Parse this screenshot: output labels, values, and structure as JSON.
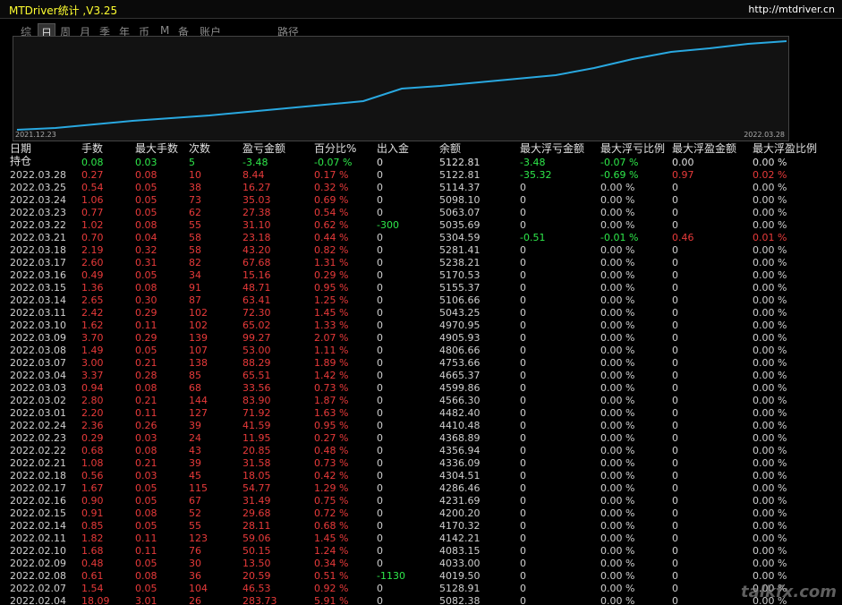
{
  "header": {
    "title": "MTDriver统计 ,V3.25",
    "url": "http://mtdriver.cn"
  },
  "tabs": [
    "综",
    "日",
    "周",
    "月",
    "季",
    "年",
    "币",
    "M",
    "备",
    "账户",
    "路径"
  ],
  "selected_tab": 1,
  "equity_curve": {
    "start_label": "2021.12.23",
    "end_label": "2022.03.28",
    "color": "#29a8e0",
    "ylim": [
      0,
      100
    ],
    "values": [
      0,
      2,
      6,
      10,
      13,
      16,
      20,
      24,
      28,
      32,
      46,
      49,
      53,
      57,
      61,
      69,
      79,
      87,
      91,
      96,
      99
    ]
  },
  "table": {
    "columns": [
      "日期",
      "手数",
      "最大手数",
      "次数",
      "盈亏金额",
      "百分比%",
      "出入金",
      "余额",
      "最大浮亏金额",
      "最大浮亏比例",
      "最大浮盈金额",
      "最大浮盈比例"
    ],
    "holding": [
      "持仓",
      "0.08",
      "0.03",
      "5",
      "-3.48",
      "-0.07 %",
      "0",
      "5122.81",
      "-3.48",
      "-0.07 %",
      "0.00",
      "0.00 %"
    ],
    "rows": [
      [
        "2022.03.28",
        "0.27",
        "0.08",
        "10",
        "8.44",
        "0.17 %",
        "0",
        "5122.81",
        "-35.32",
        "-0.69 %",
        "0.97",
        "0.02 %"
      ],
      [
        "2022.03.25",
        "0.54",
        "0.05",
        "38",
        "16.27",
        "0.32 %",
        "0",
        "5114.37",
        "0",
        "0.00 %",
        "0",
        "0.00 %"
      ],
      [
        "2022.03.24",
        "1.06",
        "0.05",
        "73",
        "35.03",
        "0.69 %",
        "0",
        "5098.10",
        "0",
        "0.00 %",
        "0",
        "0.00 %"
      ],
      [
        "2022.03.23",
        "0.77",
        "0.05",
        "62",
        "27.38",
        "0.54 %",
        "0",
        "5063.07",
        "0",
        "0.00 %",
        "0",
        "0.00 %"
      ],
      [
        "2022.03.22",
        "1.02",
        "0.08",
        "55",
        "31.10",
        "0.62 %",
        "-300",
        "5035.69",
        "0",
        "0.00 %",
        "0",
        "0.00 %"
      ],
      [
        "2022.03.21",
        "0.70",
        "0.04",
        "58",
        "23.18",
        "0.44 %",
        "0",
        "5304.59",
        "-0.51",
        "-0.01 %",
        "0.46",
        "0.01 %"
      ],
      [
        "2022.03.18",
        "2.19",
        "0.32",
        "58",
        "43.20",
        "0.82 %",
        "0",
        "5281.41",
        "0",
        "0.00 %",
        "0",
        "0.00 %"
      ],
      [
        "2022.03.17",
        "2.60",
        "0.31",
        "82",
        "67.68",
        "1.31 %",
        "0",
        "5238.21",
        "0",
        "0.00 %",
        "0",
        "0.00 %"
      ],
      [
        "2022.03.16",
        "0.49",
        "0.05",
        "34",
        "15.16",
        "0.29 %",
        "0",
        "5170.53",
        "0",
        "0.00 %",
        "0",
        "0.00 %"
      ],
      [
        "2022.03.15",
        "1.36",
        "0.08",
        "91",
        "48.71",
        "0.95 %",
        "0",
        "5155.37",
        "0",
        "0.00 %",
        "0",
        "0.00 %"
      ],
      [
        "2022.03.14",
        "2.65",
        "0.30",
        "87",
        "63.41",
        "1.25 %",
        "0",
        "5106.66",
        "0",
        "0.00 %",
        "0",
        "0.00 %"
      ],
      [
        "2022.03.11",
        "2.42",
        "0.29",
        "102",
        "72.30",
        "1.45 %",
        "0",
        "5043.25",
        "0",
        "0.00 %",
        "0",
        "0.00 %"
      ],
      [
        "2022.03.10",
        "1.62",
        "0.11",
        "102",
        "65.02",
        "1.33 %",
        "0",
        "4970.95",
        "0",
        "0.00 %",
        "0",
        "0.00 %"
      ],
      [
        "2022.03.09",
        "3.70",
        "0.29",
        "139",
        "99.27",
        "2.07 %",
        "0",
        "4905.93",
        "0",
        "0.00 %",
        "0",
        "0.00 %"
      ],
      [
        "2022.03.08",
        "1.49",
        "0.05",
        "107",
        "53.00",
        "1.11 %",
        "0",
        "4806.66",
        "0",
        "0.00 %",
        "0",
        "0.00 %"
      ],
      [
        "2022.03.07",
        "3.00",
        "0.21",
        "138",
        "88.29",
        "1.89 %",
        "0",
        "4753.66",
        "0",
        "0.00 %",
        "0",
        "0.00 %"
      ],
      [
        "2022.03.04",
        "3.37",
        "0.28",
        "85",
        "65.51",
        "1.42 %",
        "0",
        "4665.37",
        "0",
        "0.00 %",
        "0",
        "0.00 %"
      ],
      [
        "2022.03.03",
        "0.94",
        "0.08",
        "68",
        "33.56",
        "0.73 %",
        "0",
        "4599.86",
        "0",
        "0.00 %",
        "0",
        "0.00 %"
      ],
      [
        "2022.03.02",
        "2.80",
        "0.21",
        "144",
        "83.90",
        "1.87 %",
        "0",
        "4566.30",
        "0",
        "0.00 %",
        "0",
        "0.00 %"
      ],
      [
        "2022.03.01",
        "2.20",
        "0.11",
        "127",
        "71.92",
        "1.63 %",
        "0",
        "4482.40",
        "0",
        "0.00 %",
        "0",
        "0.00 %"
      ],
      [
        "2022.02.24",
        "2.36",
        "0.26",
        "39",
        "41.59",
        "0.95 %",
        "0",
        "4410.48",
        "0",
        "0.00 %",
        "0",
        "0.00 %"
      ],
      [
        "2022.02.23",
        "0.29",
        "0.03",
        "24",
        "11.95",
        "0.27 %",
        "0",
        "4368.89",
        "0",
        "0.00 %",
        "0",
        "0.00 %"
      ],
      [
        "2022.02.22",
        "0.68",
        "0.08",
        "43",
        "20.85",
        "0.48 %",
        "0",
        "4356.94",
        "0",
        "0.00 %",
        "0",
        "0.00 %"
      ],
      [
        "2022.02.21",
        "1.08",
        "0.21",
        "39",
        "31.58",
        "0.73 %",
        "0",
        "4336.09",
        "0",
        "0.00 %",
        "0",
        "0.00 %"
      ],
      [
        "2022.02.18",
        "0.56",
        "0.03",
        "45",
        "18.05",
        "0.42 %",
        "0",
        "4304.51",
        "0",
        "0.00 %",
        "0",
        "0.00 %"
      ],
      [
        "2022.02.17",
        "1.67",
        "0.05",
        "115",
        "54.77",
        "1.29 %",
        "0",
        "4286.46",
        "0",
        "0.00 %",
        "0",
        "0.00 %"
      ],
      [
        "2022.02.16",
        "0.90",
        "0.05",
        "67",
        "31.49",
        "0.75 %",
        "0",
        "4231.69",
        "0",
        "0.00 %",
        "0",
        "0.00 %"
      ],
      [
        "2022.02.15",
        "0.91",
        "0.08",
        "52",
        "29.68",
        "0.72 %",
        "0",
        "4200.20",
        "0",
        "0.00 %",
        "0",
        "0.00 %"
      ],
      [
        "2022.02.14",
        "0.85",
        "0.05",
        "55",
        "28.11",
        "0.68 %",
        "0",
        "4170.32",
        "0",
        "0.00 %",
        "0",
        "0.00 %"
      ],
      [
        "2022.02.11",
        "1.82",
        "0.11",
        "123",
        "59.06",
        "1.45 %",
        "0",
        "4142.21",
        "0",
        "0.00 %",
        "0",
        "0.00 %"
      ],
      [
        "2022.02.10",
        "1.68",
        "0.11",
        "76",
        "50.15",
        "1.24 %",
        "0",
        "4083.15",
        "0",
        "0.00 %",
        "0",
        "0.00 %"
      ],
      [
        "2022.02.09",
        "0.48",
        "0.05",
        "30",
        "13.50",
        "0.34 %",
        "0",
        "4033.00",
        "0",
        "0.00 %",
        "0",
        "0.00 %"
      ],
      [
        "2022.02.08",
        "0.61",
        "0.08",
        "36",
        "20.59",
        "0.51 %",
        "-1130",
        "4019.50",
        "0",
        "0.00 %",
        "0",
        "0.00 %"
      ],
      [
        "2022.02.07",
        "1.54",
        "0.05",
        "104",
        "46.53",
        "0.92 %",
        "0",
        "5128.91",
        "0",
        "0.00 %",
        "0",
        "0.00 %"
      ],
      [
        "2022.02.04",
        "18.09",
        "3.01",
        "26",
        "283.73",
        "5.91 %",
        "0",
        "5082.38",
        "0",
        "0.00 %",
        "0",
        "0.00 %"
      ]
    ]
  },
  "watermark": "talkfx.com"
}
